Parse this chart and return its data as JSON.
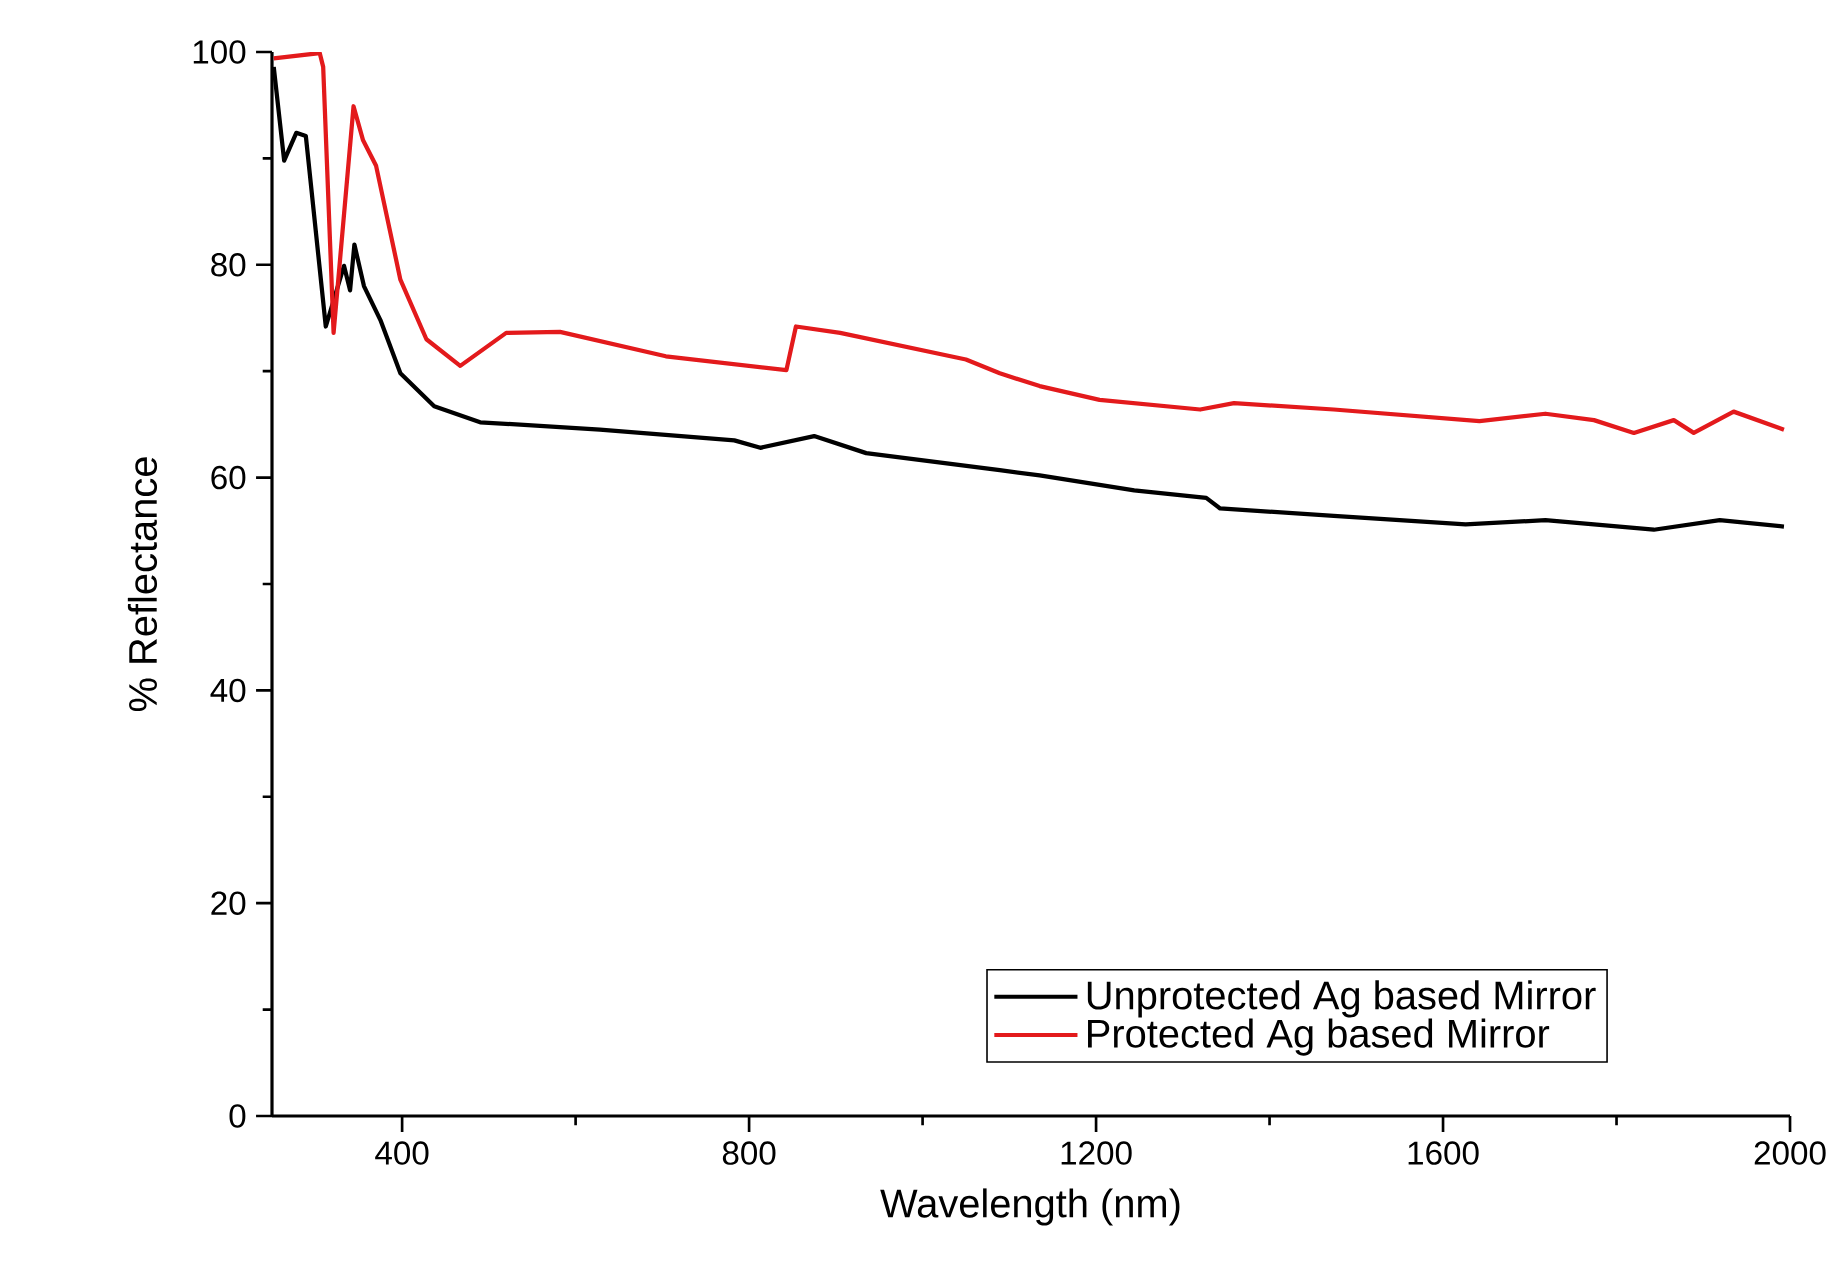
{
  "chart_data": {
    "type": "line",
    "xlabel": "Wavelength (nm)",
    "ylabel": "% Reflectance",
    "xlim": [
      250,
      2000
    ],
    "xticks": [
      400,
      800,
      1200,
      1600,
      2000
    ],
    "ylim": [
      0,
      100
    ],
    "yticks": [
      0,
      20,
      40,
      60,
      80,
      100
    ],
    "legend": "bottom right",
    "grid": false,
    "marker": "none",
    "line_style": "solid",
    "series": [
      {
        "name": "Unprotected Ag based Mirror",
        "color": "#000000",
        "x": [
          252,
          264,
          278,
          289,
          312,
          333,
          340,
          345,
          356,
          375,
          398,
          437,
          490,
          628,
          783,
          813,
          875,
          935,
          1089,
          1135,
          1244,
          1327,
          1343,
          1474,
          1626,
          1718,
          1843,
          1919,
          1993
        ],
        "values": [
          98.6,
          89.8,
          92.4,
          92.1,
          74.2,
          79.9,
          77.6,
          81.9,
          78,
          74.8,
          69.8,
          66.7,
          65.2,
          64.5,
          63.5,
          62.8,
          63.9,
          62.3,
          60.7,
          60.2,
          58.8,
          58.1,
          57.1,
          56.4,
          55.6,
          56.0,
          55.1,
          56.0,
          55.4
        ]
      },
      {
        "name": "Protected Ag based Mirror",
        "color": "#e31a1c",
        "x": [
          252,
          305,
          309,
          321,
          344,
          355,
          370,
          398,
          428,
          467,
          520,
          582,
          704,
          843,
          854,
          905,
          1050,
          1089,
          1135,
          1204,
          1320,
          1359,
          1474,
          1642,
          1718,
          1774,
          1820,
          1866,
          1889,
          1935,
          1993
        ],
        "values": [
          99.4,
          99.9,
          98.6,
          73.6,
          94.9,
          91.7,
          89.3,
          78.6,
          73,
          70.5,
          73.6,
          73.7,
          71.4,
          70.1,
          74.2,
          73.6,
          71.1,
          69.8,
          68.6,
          67.3,
          66.4,
          67.0,
          66.4,
          65.3,
          66.0,
          65.4,
          64.2,
          65.4,
          64.2,
          66.2,
          64.5
        ]
      }
    ]
  }
}
